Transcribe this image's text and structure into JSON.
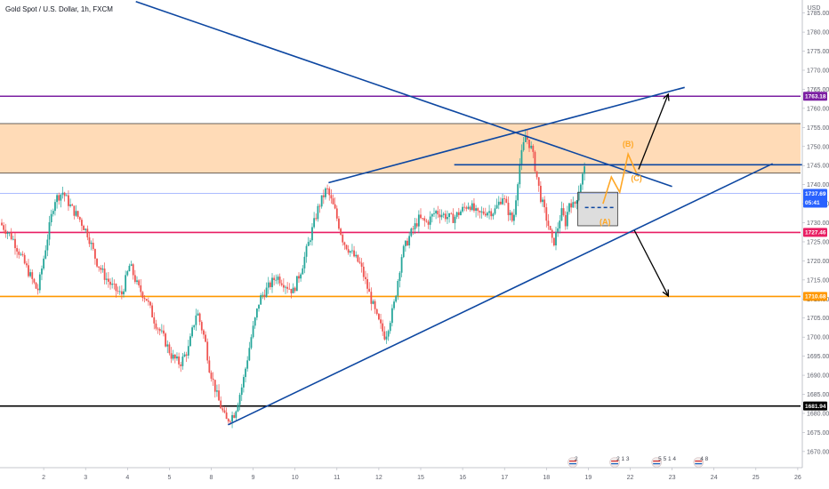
{
  "title": "Gold Spot / U.S. Dollar, 1h, FXCM",
  "chart_data": {
    "type": "candlestick",
    "title": "Gold Spot / U.S. Dollar, 1h, FXCM",
    "currency": "USD",
    "ylim": [
      1666,
      1788
    ],
    "xlim": [
      0,
      27
    ],
    "y_ticks": [
      1670,
      1675,
      1680,
      1685,
      1690,
      1695,
      1700,
      1705,
      1710,
      1715,
      1720,
      1725,
      1730,
      1735,
      1740,
      1745,
      1750,
      1755,
      1760,
      1765,
      1770,
      1775,
      1780,
      1785
    ],
    "x_ticks": [
      {
        "x": 1.0,
        "label": "2"
      },
      {
        "x": 2.0,
        "label": "3"
      },
      {
        "x": 3.0,
        "label": "4"
      },
      {
        "x": 4.0,
        "label": "5"
      },
      {
        "x": 5.0,
        "label": "8"
      },
      {
        "x": 6.0,
        "label": "9"
      },
      {
        "x": 7.0,
        "label": "10"
      },
      {
        "x": 8.0,
        "label": "11"
      },
      {
        "x": 9.0,
        "label": "12"
      },
      {
        "x": 10.0,
        "label": "15"
      },
      {
        "x": 11.0,
        "label": "16"
      },
      {
        "x": 12.0,
        "label": "17"
      },
      {
        "x": 13.0,
        "label": "18"
      },
      {
        "x": 14.0,
        "label": "19"
      },
      {
        "x": 15.0,
        "label": "22"
      },
      {
        "x": 16.0,
        "label": "23"
      },
      {
        "x": 17.0,
        "label": "24"
      },
      {
        "x": 18.0,
        "label": "25"
      },
      {
        "x": 19.0,
        "label": "26"
      }
    ],
    "price_path": [
      [
        0.0,
        1730
      ],
      [
        0.3,
        1726
      ],
      [
        0.6,
        1719
      ],
      [
        0.9,
        1712
      ],
      [
        1.1,
        1724
      ],
      [
        1.3,
        1736
      ],
      [
        1.5,
        1738
      ],
      [
        1.7,
        1734
      ],
      [
        1.9,
        1731
      ],
      [
        2.1,
        1727
      ],
      [
        2.3,
        1720
      ],
      [
        2.5,
        1716
      ],
      [
        2.7,
        1713
      ],
      [
        2.9,
        1711
      ],
      [
        3.1,
        1719
      ],
      [
        3.3,
        1713
      ],
      [
        3.5,
        1710
      ],
      [
        3.7,
        1704
      ],
      [
        3.9,
        1700
      ],
      [
        4.1,
        1695
      ],
      [
        4.3,
        1693
      ],
      [
        4.5,
        1697
      ],
      [
        4.7,
        1707
      ],
      [
        4.9,
        1699
      ],
      [
        5.0,
        1692
      ],
      [
        5.2,
        1684
      ],
      [
        5.4,
        1678
      ],
      [
        5.6,
        1680
      ],
      [
        5.8,
        1688
      ],
      [
        6.0,
        1700
      ],
      [
        6.2,
        1710
      ],
      [
        6.4,
        1713
      ],
      [
        6.6,
        1716
      ],
      [
        6.8,
        1714
      ],
      [
        7.0,
        1712
      ],
      [
        7.2,
        1718
      ],
      [
        7.4,
        1726
      ],
      [
        7.6,
        1734
      ],
      [
        7.8,
        1739
      ],
      [
        8.0,
        1733
      ],
      [
        8.2,
        1725
      ],
      [
        8.4,
        1722
      ],
      [
        8.6,
        1719
      ],
      [
        8.8,
        1712
      ],
      [
        9.0,
        1705
      ],
      [
        9.2,
        1700
      ],
      [
        9.4,
        1708
      ],
      [
        9.6,
        1722
      ],
      [
        9.8,
        1727
      ],
      [
        10.0,
        1731
      ],
      [
        10.2,
        1730
      ],
      [
        10.4,
        1733
      ],
      [
        10.6,
        1732
      ],
      [
        10.8,
        1731
      ],
      [
        11.0,
        1733
      ],
      [
        11.2,
        1735
      ],
      [
        11.4,
        1732
      ],
      [
        11.6,
        1733
      ],
      [
        11.8,
        1733
      ],
      [
        12.0,
        1737
      ],
      [
        12.1,
        1734
      ],
      [
        12.25,
        1730
      ],
      [
        12.4,
        1745
      ],
      [
        12.55,
        1753
      ],
      [
        12.7,
        1749
      ],
      [
        12.8,
        1743
      ],
      [
        12.9,
        1737
      ],
      [
        13.0,
        1733
      ],
      [
        13.1,
        1729
      ],
      [
        13.2,
        1724
      ],
      [
        13.3,
        1728
      ],
      [
        13.4,
        1733
      ],
      [
        13.5,
        1730
      ],
      [
        13.6,
        1736
      ],
      [
        13.7,
        1734
      ],
      [
        13.8,
        1738
      ],
      [
        13.9,
        1742
      ],
      [
        13.95,
        1744
      ]
    ],
    "horizontal_levels": [
      {
        "name": "purple-resistance",
        "price": 1763.18,
        "label": "1763.18",
        "color": "#7b1fa2"
      },
      {
        "name": "current-price",
        "price": 1737.69,
        "label": "1737.69",
        "color": "#2962ff"
      },
      {
        "name": "pink-support",
        "price": 1727.46,
        "label": "1727.46",
        "color": "#e91e63"
      },
      {
        "name": "orange-support",
        "price": 1710.68,
        "label": "1710.68",
        "color": "#ff9800"
      },
      {
        "name": "black-support",
        "price": 1681.94,
        "label": "1681.94",
        "color": "#000000"
      }
    ],
    "countdown": "05:41",
    "resistance_zone": {
      "from": 1743.0,
      "to": 1756.0,
      "color": "#ffcc99"
    },
    "annotations": {
      "wave_labels": [
        {
          "label": "(A)",
          "x": 14.4,
          "y": 1729.5
        },
        {
          "label": "(B)",
          "x": 14.95,
          "y": 1750
        },
        {
          "label": "(C)",
          "x": 15.15,
          "y": 1741
        }
      ]
    },
    "trend_lines": [
      {
        "name": "descending-line",
        "from": [
          3.2,
          1788
        ],
        "to": [
          16.0,
          1739.5
        ],
        "color": "#0d47a1"
      },
      {
        "name": "upper-channel-line",
        "from": [
          7.8,
          1740.5
        ],
        "to": [
          16.3,
          1765.5
        ],
        "color": "#0d47a1"
      },
      {
        "name": "lower-support-line",
        "from": [
          5.4,
          1677
        ],
        "to": [
          18.4,
          1745.5
        ],
        "color": "#0d47a1"
      },
      {
        "name": "short-resistance-line",
        "from": [
          10.8,
          1745.2
        ],
        "to": [
          19.2,
          1745.2
        ],
        "color": "#0d47a1"
      }
    ],
    "projection_arrows": [
      {
        "name": "bullish-projection-arrow",
        "from": [
          15.2,
          1744
        ],
        "to": [
          15.9,
          1763.5
        ]
      },
      {
        "name": "bearish-projection-arrow",
        "from": [
          15.1,
          1728
        ],
        "to": [
          15.9,
          1711
        ]
      }
    ],
    "zigzag_projection": [
      [
        14.35,
        1735
      ],
      [
        14.55,
        1742
      ],
      [
        14.75,
        1738
      ],
      [
        14.95,
        1748
      ],
      [
        15.15,
        1743
      ]
    ],
    "consolidation_box": {
      "x0": 13.75,
      "x1": 14.7,
      "y0": 1729.2,
      "y1": 1738,
      "mid": 1734.0
    },
    "event_markers": [
      {
        "x": 13.8,
        "label": "2"
      },
      {
        "x": 14.8,
        "label": "2 1 3"
      },
      {
        "x": 15.8,
        "label": "5 5 1 4"
      },
      {
        "x": 16.8,
        "label": "4    8"
      }
    ]
  }
}
